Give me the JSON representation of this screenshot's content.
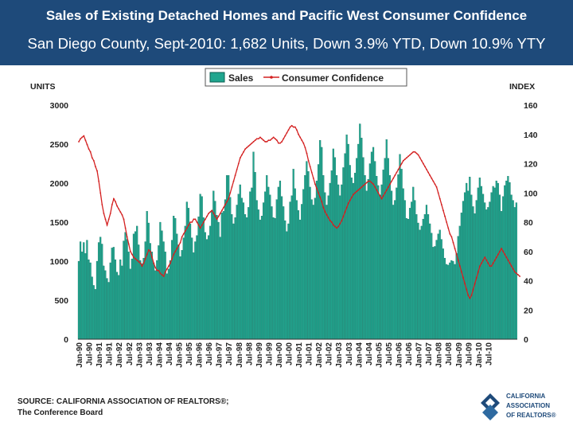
{
  "header": {
    "title": "Sales of Existing Detached Homes and Pacific West Consumer Confidence",
    "subtitle": "San Diego County, Sept-2010: 1,682 Units, Down 3.9% YTD, Down 10.9% YTY"
  },
  "source": {
    "line1": "SOURCE: CALIFORNIA ASSOCIATION OF REALTORS®;",
    "line2": "The Conference Board"
  },
  "logo": {
    "line1": "CALIFORNIA",
    "line2": "ASSOCIATION",
    "line3": "OF REALTORS®"
  },
  "colors": {
    "header_bg": "#1e4a7a",
    "bar_fill": "#1fa58e",
    "bar_edge": "#0d5e52",
    "line": "#d42020"
  },
  "chart_data": {
    "type": "bar",
    "left_axis_label": "UNITS",
    "right_axis_label": "INDEX",
    "left_ylim": [
      0,
      3000
    ],
    "left_ticks": [
      0,
      500,
      1000,
      1500,
      2000,
      2500,
      3000
    ],
    "right_ylim": [
      0,
      160
    ],
    "right_ticks": [
      0,
      20,
      40,
      60,
      80,
      100,
      120,
      140,
      160
    ],
    "x_tick_labels": [
      "Jan-90",
      "Jul-90",
      "Jan-91",
      "Jul-91",
      "Jan-92",
      "Jul-92",
      "Jan-93",
      "Jul-93",
      "Jan-94",
      "Jul-94",
      "Jan-95",
      "Jul-95",
      "Jan-96",
      "Jul-96",
      "Jan-97",
      "Jul-97",
      "Jan-98",
      "Jul-98",
      "Jan-99",
      "Jul-99",
      "Jan-00",
      "Jul-00",
      "Jan-01",
      "Jul-01",
      "Jan-02",
      "Jul-02",
      "Jan-03",
      "Jul-03",
      "Jan-04",
      "Jul-04",
      "Jan-05",
      "Jul-05",
      "Jan-06",
      "Jul-06",
      "Jan-07",
      "Jul-07",
      "Jan-08",
      "Jul-08",
      "Jan-09",
      "Jul-09",
      "Jan-10",
      "Jul-10"
    ],
    "grid": false,
    "legend_position": "top",
    "series": [
      {
        "name": "Sales",
        "type": "bar",
        "axis": "left",
        "values": [
          1000,
          1250,
          1120,
          1240,
          1100,
          1270,
          1020,
          980,
          800,
          690,
          640,
          1000,
          1240,
          1310,
          1220,
          940,
          880,
          780,
          730,
          980,
          1170,
          1180,
          1020,
          860,
          820,
          1020,
          940,
          1260,
          1370,
          1280,
          1120,
          900,
          1030,
          1350,
          1380,
          1450,
          1210,
          1010,
          970,
          1040,
          1250,
          1640,
          1490,
          1230,
          1120,
          980,
          880,
          1010,
          1200,
          1500,
          1390,
          1250,
          1120,
          840,
          900,
          1010,
          1270,
          1580,
          1550,
          1350,
          1210,
          1060,
          1140,
          1300,
          1450,
          1760,
          1680,
          1480,
          1300,
          1110,
          1250,
          1330,
          1570,
          1860,
          1830,
          1560,
          1370,
          1280,
          1330,
          1450,
          1650,
          1900,
          1770,
          1590,
          1500,
          1310,
          1620,
          1640,
          1790,
          2100,
          2100,
          1820,
          1600,
          1480,
          1560,
          1720,
          1860,
          1980,
          1810,
          1750,
          1600,
          1560,
          1690,
          1890,
          1940,
          2400,
          2140,
          1780,
          1660,
          1530,
          1580,
          1750,
          1890,
          2100,
          1950,
          1850,
          1700,
          1560,
          1550,
          1790,
          1950,
          2030,
          1830,
          1700,
          1520,
          1380,
          1480,
          1760,
          1840,
          2180,
          1930,
          1780,
          1650,
          1530,
          1730,
          1920,
          2100,
          2280,
          2150,
          1950,
          1790,
          1720,
          1810,
          2030,
          2240,
          2550,
          2460,
          2100,
          1880,
          1720,
          1840,
          2000,
          2160,
          2440,
          2330,
          2100,
          1980,
          1840,
          1980,
          2200,
          2380,
          2620,
          2500,
          2230,
          2070,
          2000,
          2130,
          2320,
          2500,
          2760,
          2580,
          2330,
          2100,
          1900,
          2050,
          2250,
          2400,
          2460,
          2280,
          2090,
          1970,
          1850,
          1980,
          2170,
          2320,
          2560,
          2320,
          2100,
          1900,
          1720,
          1780,
          1940,
          2110,
          2370,
          2180,
          1930,
          1780,
          1550,
          1540,
          1680,
          1760,
          1950,
          1780,
          1600,
          1490,
          1400,
          1450,
          1540,
          1600,
          1720,
          1600,
          1480,
          1360,
          1180,
          1190,
          1270,
          1350,
          1400,
          1280,
          1160,
          1040,
          960,
          950,
          980,
          1010,
          1000,
          960,
          1100,
          1320,
          1450,
          1620,
          1770,
          1880,
          2000,
          1900,
          2080,
          1850,
          1700,
          1610,
          1780,
          1940,
          2070,
          1960,
          1860,
          1750,
          1660,
          1690,
          1760,
          1880,
          1960,
          1940,
          2030,
          2000,
          1850,
          1640,
          1830,
          1970,
          2030,
          2090,
          2010,
          1850,
          1780,
          1690,
          1750
        ]
      },
      {
        "name": "Consumer Confidence",
        "type": "line",
        "axis": "right",
        "values": [
          135,
          137,
          138,
          139,
          136,
          133,
          130,
          128,
          124,
          122,
          118,
          115,
          108,
          100,
          92,
          86,
          82,
          78,
          82,
          86,
          92,
          96,
          94,
          91,
          89,
          87,
          85,
          82,
          76,
          70,
          65,
          60,
          58,
          56,
          55,
          54,
          53,
          52,
          50,
          52,
          55,
          58,
          61,
          60,
          56,
          52,
          49,
          47,
          47,
          45,
          44,
          43,
          46,
          48,
          50,
          52,
          55,
          58,
          60,
          62,
          64,
          66,
          70,
          72,
          74,
          76,
          78,
          80,
          80,
          82,
          82,
          80,
          78,
          76,
          78,
          80,
          82,
          84,
          86,
          87,
          88,
          86,
          84,
          82,
          84,
          86,
          88,
          90,
          92,
          94,
          96,
          100,
          104,
          108,
          112,
          116,
          120,
          124,
          126,
          128,
          130,
          131,
          132,
          133,
          134,
          135,
          136,
          137,
          137,
          138,
          137,
          136,
          135,
          135,
          136,
          136,
          137,
          138,
          137,
          136,
          134,
          134,
          135,
          137,
          139,
          141,
          143,
          145,
          146,
          145,
          145,
          143,
          140,
          138,
          136,
          134,
          131,
          127,
          122,
          118,
          114,
          110,
          106,
          103,
          100,
          97,
          94,
          90,
          87,
          85,
          83,
          81,
          80,
          78,
          77,
          76,
          77,
          79,
          81,
          84,
          87,
          90,
          93,
          95,
          97,
          99,
          100,
          101,
          102,
          103,
          104,
          105,
          106,
          107,
          108,
          108,
          107,
          106,
          104,
          102,
          100,
          98,
          96,
          98,
          100,
          102,
          104,
          106,
          108,
          110,
          112,
          114,
          116,
          118,
          120,
          122,
          123,
          124,
          125,
          126,
          127,
          128,
          128,
          127,
          126,
          124,
          122,
          120,
          118,
          116,
          114,
          112,
          110,
          108,
          106,
          104,
          100,
          96,
          92,
          88,
          84,
          80,
          76,
          72,
          70,
          66,
          62,
          58,
          54,
          50,
          46,
          42,
          38,
          34,
          30,
          28,
          30,
          34,
          38,
          42,
          46,
          50,
          52,
          54,
          56,
          54,
          52,
          50,
          50,
          52,
          54,
          56,
          58,
          60,
          62,
          60,
          58,
          56,
          54,
          52,
          50,
          48,
          46,
          45,
          44,
          43
        ]
      }
    ]
  }
}
